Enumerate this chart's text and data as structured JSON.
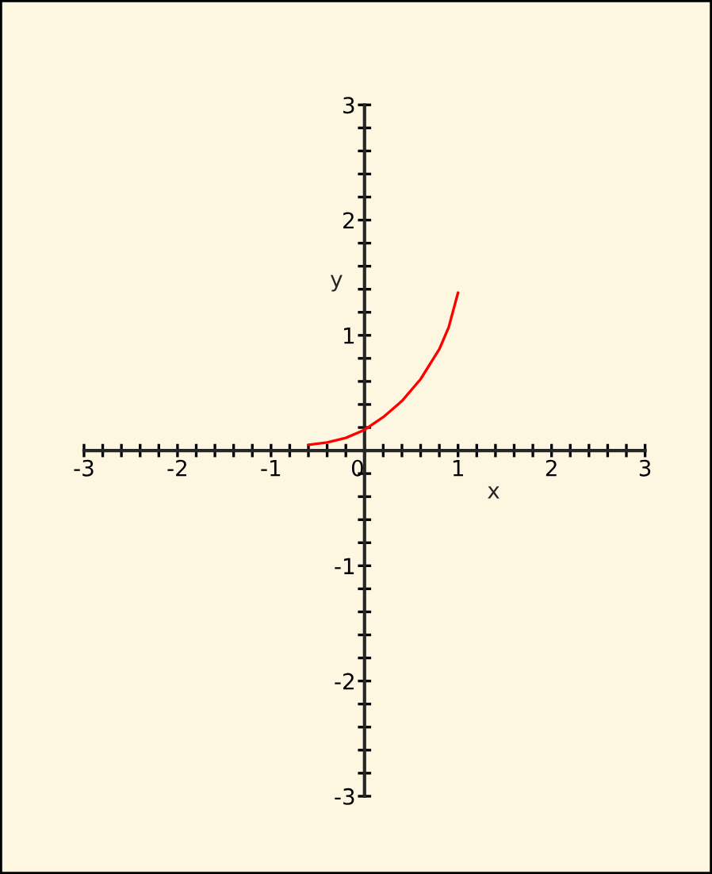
{
  "chart_data": {
    "type": "line",
    "xlabel": "x",
    "ylabel": "y",
    "x": [
      -0.6,
      -0.4,
      -0.2,
      0,
      0.2,
      0.4,
      0.6,
      0.8,
      0.9,
      1.0
    ],
    "series": [
      {
        "color": "#ff0000",
        "values": [
          0.05,
          0.07,
          0.11,
          0.18,
          0.29,
          0.43,
          0.62,
          0.88,
          1.07,
          1.37
        ]
      }
    ],
    "xlim": [
      -3,
      3
    ],
    "ylim": [
      -3,
      3
    ],
    "xticks": [
      -3,
      {
        "value": -2.8,
        "label": null
      },
      {
        "value": -2.6,
        "label": null
      },
      {
        "value": -2.4,
        "label": null
      },
      {
        "value": -2.2,
        "label": null
      },
      -2,
      {
        "value": -1.8,
        "label": null
      },
      {
        "value": -1.6,
        "label": null
      },
      {
        "value": -1.4,
        "label": null
      },
      {
        "value": -1.2,
        "label": null
      },
      -1,
      {
        "value": -0.8,
        "label": null
      },
      {
        "value": -0.6,
        "label": null
      },
      {
        "value": -0.4,
        "label": null
      },
      {
        "value": -0.2,
        "label": null
      },
      0,
      {
        "value": 0.2,
        "label": null
      },
      {
        "value": 0.4,
        "label": null
      },
      {
        "value": 0.6,
        "label": null
      },
      {
        "value": 0.8,
        "label": null
      },
      1,
      {
        "value": 1.2,
        "label": null
      },
      {
        "value": 1.4,
        "label": null
      },
      {
        "value": 1.6,
        "label": null
      },
      {
        "value": 1.8,
        "label": null
      },
      2,
      {
        "value": 2.2,
        "label": null
      },
      {
        "value": 2.4,
        "label": null
      },
      {
        "value": 2.6,
        "label": null
      },
      {
        "value": 2.8,
        "label": null
      },
      3
    ],
    "yticks": [
      -3,
      {
        "value": -2.8,
        "label": null
      },
      {
        "value": -2.6,
        "label": null
      },
      {
        "value": -2.4,
        "label": null
      },
      {
        "value": -2.2,
        "label": null
      },
      -2,
      {
        "value": -1.8,
        "label": null
      },
      {
        "value": -1.6,
        "label": null
      },
      {
        "value": -1.4,
        "label": null
      },
      {
        "value": -1.2,
        "label": null
      },
      -1,
      {
        "value": -0.8,
        "label": null
      },
      {
        "value": -0.6,
        "label": null
      },
      {
        "value": -0.4,
        "label": null
      },
      {
        "value": -0.2,
        "label": null
      },
      {
        "value": 0.2,
        "label": null
      },
      {
        "value": 0.4,
        "label": null
      },
      {
        "value": 0.6,
        "label": null
      },
      {
        "value": 0.8,
        "label": null
      },
      1,
      {
        "value": 1.2,
        "label": null
      },
      {
        "value": 1.4,
        "label": null
      },
      {
        "value": 1.6,
        "label": null
      },
      {
        "value": 1.8,
        "label": null
      },
      2,
      {
        "value": 2.2,
        "label": null
      },
      {
        "value": 2.4,
        "label": null
      },
      {
        "value": 2.6,
        "label": null
      },
      {
        "value": 2.8,
        "label": null
      },
      3
    ],
    "grid": false,
    "marker": "none",
    "line_style": "solid"
  }
}
